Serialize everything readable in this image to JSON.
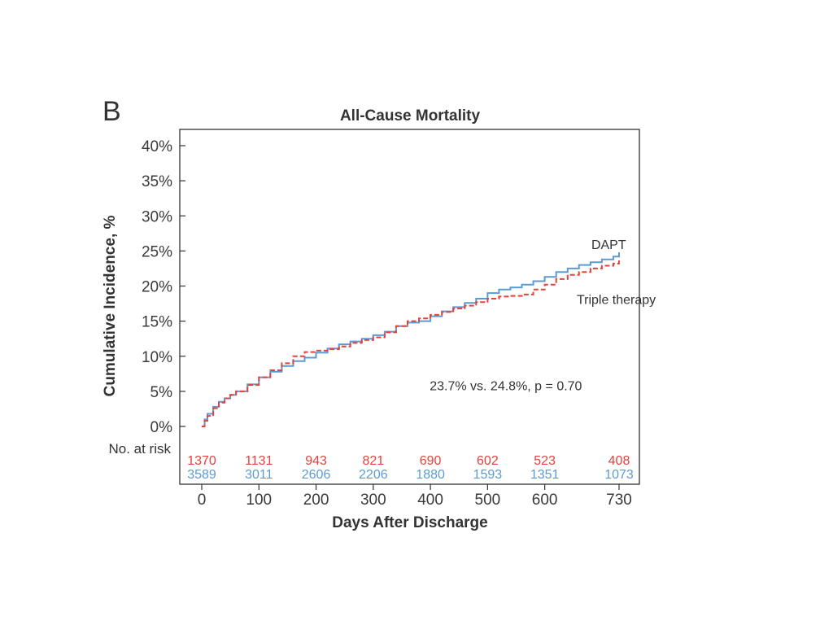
{
  "panel_label": "B",
  "chart_data": {
    "type": "line",
    "title": "All-Cause Mortality",
    "xlabel": "Days After Discharge",
    "ylabel": "Cumulative Incidence, %",
    "xlim": [
      -35,
      765
    ],
    "ylim": [
      0,
      42
    ],
    "x_ticks": [
      0,
      100,
      200,
      300,
      400,
      500,
      600,
      730
    ],
    "x_tick_labels": [
      "0",
      "100",
      "200",
      "300",
      "400",
      "500",
      "600",
      "730"
    ],
    "y_ticks": [
      0,
      5,
      10,
      15,
      20,
      25,
      30,
      35,
      40
    ],
    "y_tick_labels": [
      "0%",
      "5%",
      "10%",
      "15%",
      "20%",
      "25%",
      "30%",
      "35%",
      "40%"
    ],
    "grid": false,
    "series": [
      {
        "name": "DAPT",
        "color": "#5b9bd5",
        "style": "solid",
        "x": [
          0,
          5,
          10,
          20,
          30,
          40,
          50,
          60,
          80,
          100,
          120,
          140,
          160,
          180,
          200,
          220,
          240,
          260,
          280,
          300,
          320,
          340,
          360,
          380,
          400,
          420,
          440,
          460,
          480,
          500,
          520,
          540,
          560,
          580,
          600,
          620,
          640,
          660,
          680,
          700,
          720,
          730
        ],
        "y": [
          0,
          1.0,
          1.8,
          2.8,
          3.5,
          4.0,
          4.5,
          5.0,
          6.0,
          7.0,
          7.8,
          8.6,
          9.3,
          9.8,
          10.5,
          11.1,
          11.7,
          12.1,
          12.5,
          13.0,
          13.5,
          14.3,
          14.8,
          15.0,
          15.7,
          16.4,
          17.0,
          17.6,
          18.2,
          19.0,
          19.5,
          19.8,
          20.2,
          20.7,
          21.3,
          22.0,
          22.5,
          23.0,
          23.4,
          23.8,
          24.2,
          24.8
        ]
      },
      {
        "name": "Triple therapy",
        "color": "#e8413c",
        "style": "dashed",
        "x": [
          0,
          5,
          10,
          20,
          30,
          40,
          50,
          60,
          80,
          100,
          120,
          140,
          160,
          180,
          200,
          220,
          240,
          260,
          280,
          300,
          320,
          340,
          360,
          380,
          400,
          420,
          440,
          460,
          480,
          500,
          520,
          540,
          560,
          580,
          600,
          620,
          640,
          660,
          680,
          700,
          720,
          730
        ],
        "y": [
          0,
          0.8,
          1.5,
          2.6,
          3.4,
          4.0,
          4.5,
          5.0,
          5.9,
          7.0,
          8.0,
          9.0,
          10.0,
          10.6,
          10.8,
          11.0,
          11.4,
          11.9,
          12.3,
          12.7,
          13.4,
          14.3,
          15.0,
          15.4,
          15.9,
          16.3,
          16.8,
          17.2,
          17.7,
          18.2,
          18.5,
          18.6,
          18.8,
          19.5,
          20.2,
          21.0,
          21.6,
          22.0,
          22.5,
          22.9,
          23.2,
          23.7
        ]
      }
    ],
    "series_labels": [
      {
        "text": "DAPT",
        "x": 710,
        "y": 25.5
      },
      {
        "text": "Triple therapy",
        "x": 710,
        "y": 17.7
      }
    ],
    "annotation": {
      "text": "23.7% vs. 24.8%, p = 0.70",
      "x": 450,
      "y": 6.0
    },
    "risk_table": {
      "header": "No. at risk",
      "x": [
        0,
        100,
        200,
        300,
        400,
        500,
        600,
        730
      ],
      "rows": [
        {
          "name": "Triple therapy",
          "color": "#e8413c",
          "values": [
            "1370",
            "1131",
            "943",
            "821",
            "690",
            "602",
            "523",
            "408"
          ]
        },
        {
          "name": "DAPT",
          "color": "#5b9bd5",
          "values": [
            "3589",
            "3011",
            "2606",
            "2206",
            "1880",
            "1593",
            "1351",
            "1073"
          ]
        }
      ]
    }
  }
}
